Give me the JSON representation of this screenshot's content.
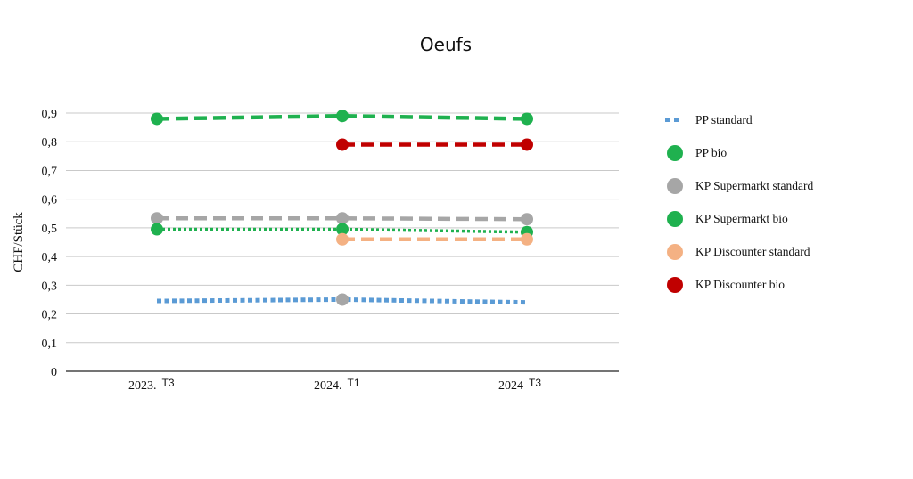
{
  "chart_data": {
    "type": "line",
    "title": "Oeufs",
    "ylabel": "CHF/Stück",
    "xlabel": "",
    "categories": [
      {
        "main": "2023.",
        "suffix": "T3"
      },
      {
        "main": "2024.",
        "suffix": "T1"
      },
      {
        "main": "2024",
        "suffix": "T3"
      }
    ],
    "ylim": [
      0,
      0.9
    ],
    "yticks": [
      "0",
      "0,1",
      "0,2",
      "0,3",
      "0,4",
      "0,5",
      "0,6",
      "0,7",
      "0,8",
      "0,9"
    ],
    "grid": true,
    "legend_position": "right",
    "series": [
      {
        "name": "PP standard",
        "values": [
          0.245,
          0.25,
          0.24
        ],
        "color": "#5b9bd5",
        "line_style": "dotted-square",
        "markers": [
          false,
          true,
          false
        ],
        "marker_color": "#a6a6a6"
      },
      {
        "name": "PP bio",
        "values": [
          0.88,
          0.89,
          0.88
        ],
        "color": "#1fb14f",
        "line_style": "dashed",
        "markers": [
          true,
          true,
          true
        ]
      },
      {
        "name": "KP Supermarkt standard",
        "values": [
          0.533,
          0.533,
          0.53
        ],
        "color": "#a6a6a6",
        "line_style": "dashed",
        "markers": [
          true,
          true,
          true
        ]
      },
      {
        "name": "KP Supermarkt bio",
        "values": [
          0.495,
          0.495,
          0.485
        ],
        "color": "#1fb14f",
        "line_style": "dotted",
        "markers": [
          true,
          true,
          true
        ]
      },
      {
        "name": "KP Discounter standard",
        "values": [
          null,
          0.46,
          0.46
        ],
        "color": "#f4b183",
        "line_style": "dashed",
        "markers": [
          false,
          true,
          true
        ]
      },
      {
        "name": "KP Discounter bio",
        "values": [
          null,
          0.79,
          0.79
        ],
        "color": "#c00000",
        "line_style": "dashed",
        "markers": [
          false,
          true,
          true
        ]
      }
    ]
  }
}
